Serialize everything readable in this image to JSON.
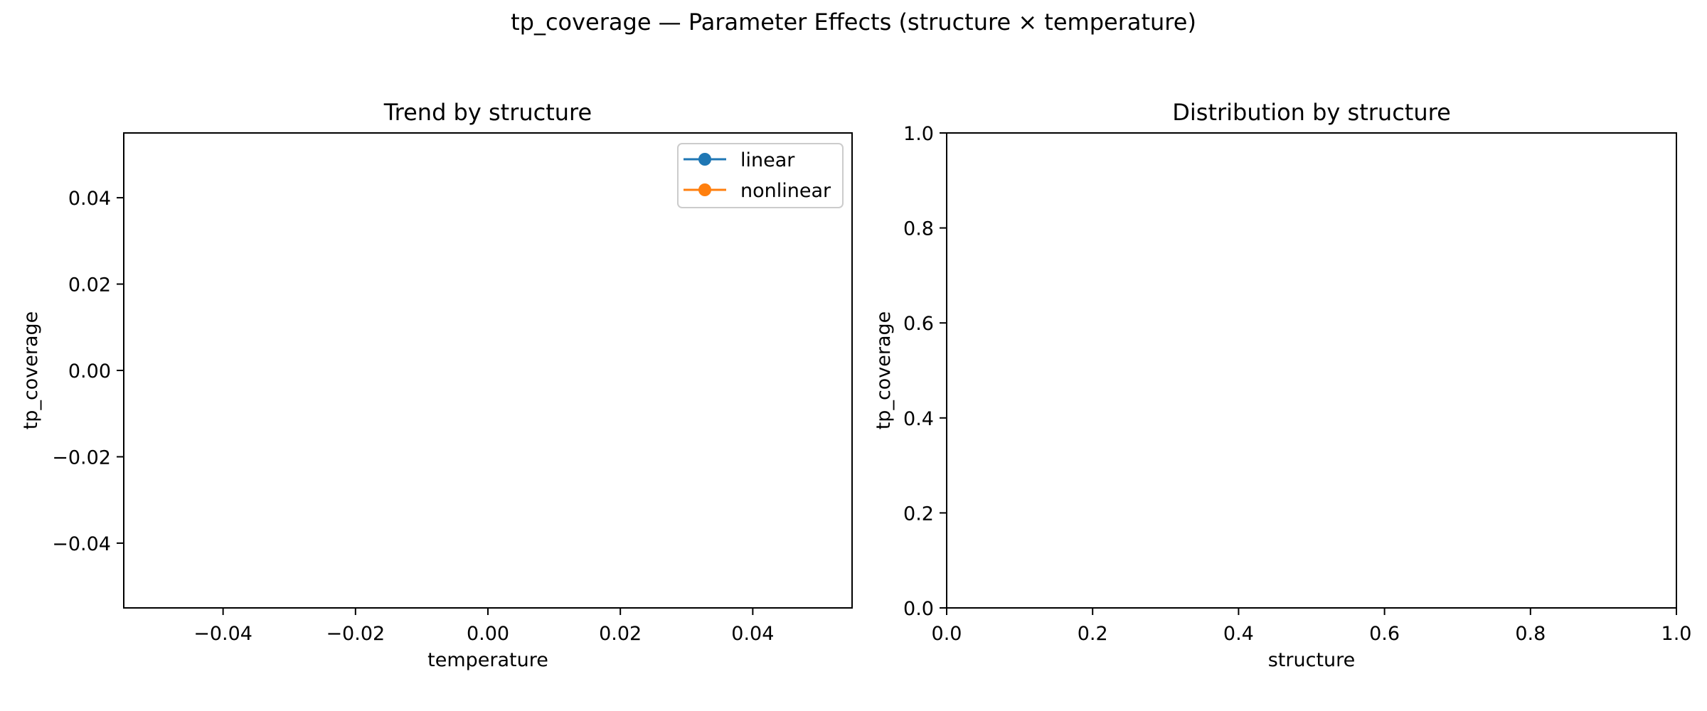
{
  "figure": {
    "title": "tp_coverage — Parameter Effects (structure × temperature)"
  },
  "colors": {
    "axes": "#000000",
    "background": "#ffffff",
    "legend_border": "#cccccc"
  },
  "chart_data": [
    {
      "type": "line",
      "title": "Trend by structure",
      "xlabel": "temperature",
      "ylabel": "tp_coverage",
      "xlim": [
        -0.055,
        0.055
      ],
      "ylim": [
        -0.055,
        0.055
      ],
      "x_ticks": [
        -0.04,
        -0.02,
        0.0,
        0.02,
        0.04
      ],
      "x_tick_labels": [
        "−0.04",
        "−0.02",
        "0.00",
        "0.02",
        "0.04"
      ],
      "y_ticks": [
        -0.04,
        -0.02,
        0.0,
        0.02,
        0.04
      ],
      "y_tick_labels": [
        "−0.04",
        "−0.02",
        "0.00",
        "0.02",
        "0.04"
      ],
      "grid": false,
      "legend_position": "top-right",
      "series": [
        {
          "name": "linear",
          "color": "#1f77b4",
          "marker": "circle",
          "x": [],
          "y": []
        },
        {
          "name": "nonlinear",
          "color": "#ff7f0e",
          "marker": "circle",
          "x": [],
          "y": []
        }
      ]
    },
    {
      "type": "box",
      "title": "Distribution by structure",
      "xlabel": "structure",
      "ylabel": "tp_coverage",
      "xlim": [
        0.0,
        1.0
      ],
      "ylim": [
        0.0,
        1.0
      ],
      "x_ticks": [
        0.0,
        0.2,
        0.4,
        0.6,
        0.8,
        1.0
      ],
      "x_tick_labels": [
        "0.0",
        "0.2",
        "0.4",
        "0.6",
        "0.8",
        "1.0"
      ],
      "y_ticks": [
        0.0,
        0.2,
        0.4,
        0.6,
        0.8,
        1.0
      ],
      "y_tick_labels": [
        "0.0",
        "0.2",
        "0.4",
        "0.6",
        "0.8",
        "1.0"
      ],
      "grid": false,
      "categories": [],
      "series": []
    }
  ]
}
